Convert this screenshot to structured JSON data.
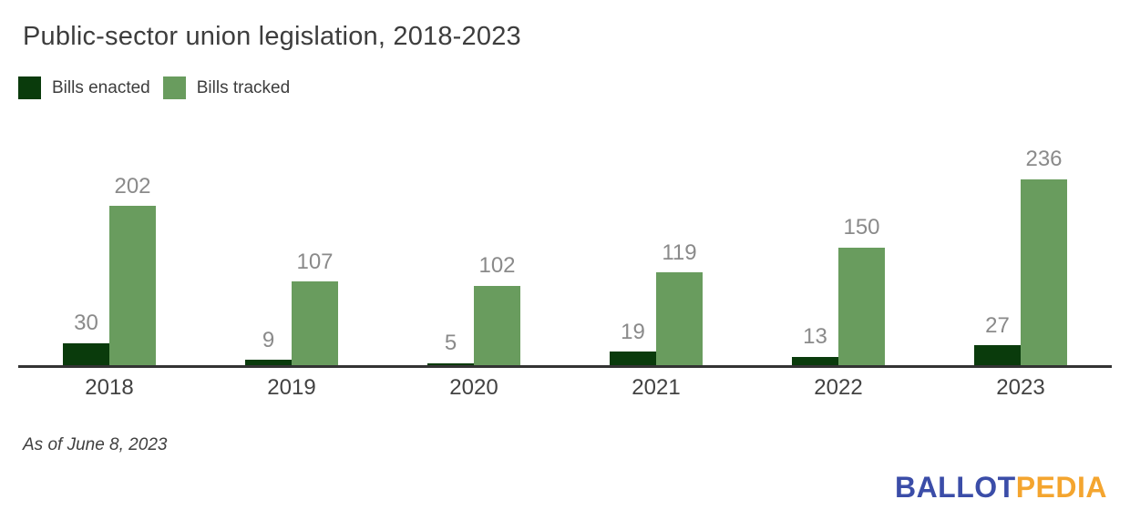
{
  "title": "Public-sector union legislation, 2018-2023",
  "footnote": "As of June 8, 2023",
  "logo": {
    "part1": "BALLOT",
    "part2": "PEDIA",
    "part1_color": "#3b4da8",
    "part2_color": "#f4a52f"
  },
  "colors": {
    "bills_enacted": "#0a3b0c",
    "bills_tracked": "#699c5e",
    "value_label": "#8a8a8a",
    "axis_line": "#333333",
    "year_label": "#424242"
  },
  "chart_data": {
    "type": "bar",
    "categories": [
      "2018",
      "2019",
      "2020",
      "2021",
      "2022",
      "2023"
    ],
    "series": [
      {
        "name": "Bills enacted",
        "color": "#0a3b0c",
        "values": [
          30,
          9,
          5,
          19,
          13,
          27
        ]
      },
      {
        "name": "Bills tracked",
        "color": "#699c5e",
        "values": [
          202,
          107,
          102,
          119,
          150,
          236
        ]
      }
    ],
    "title": "Public-sector union legislation, 2018-2023",
    "xlabel": "",
    "ylabel": "",
    "ylim": [
      0,
      280
    ],
    "grid": false,
    "legend_position": "top-left",
    "value_labels": true
  }
}
